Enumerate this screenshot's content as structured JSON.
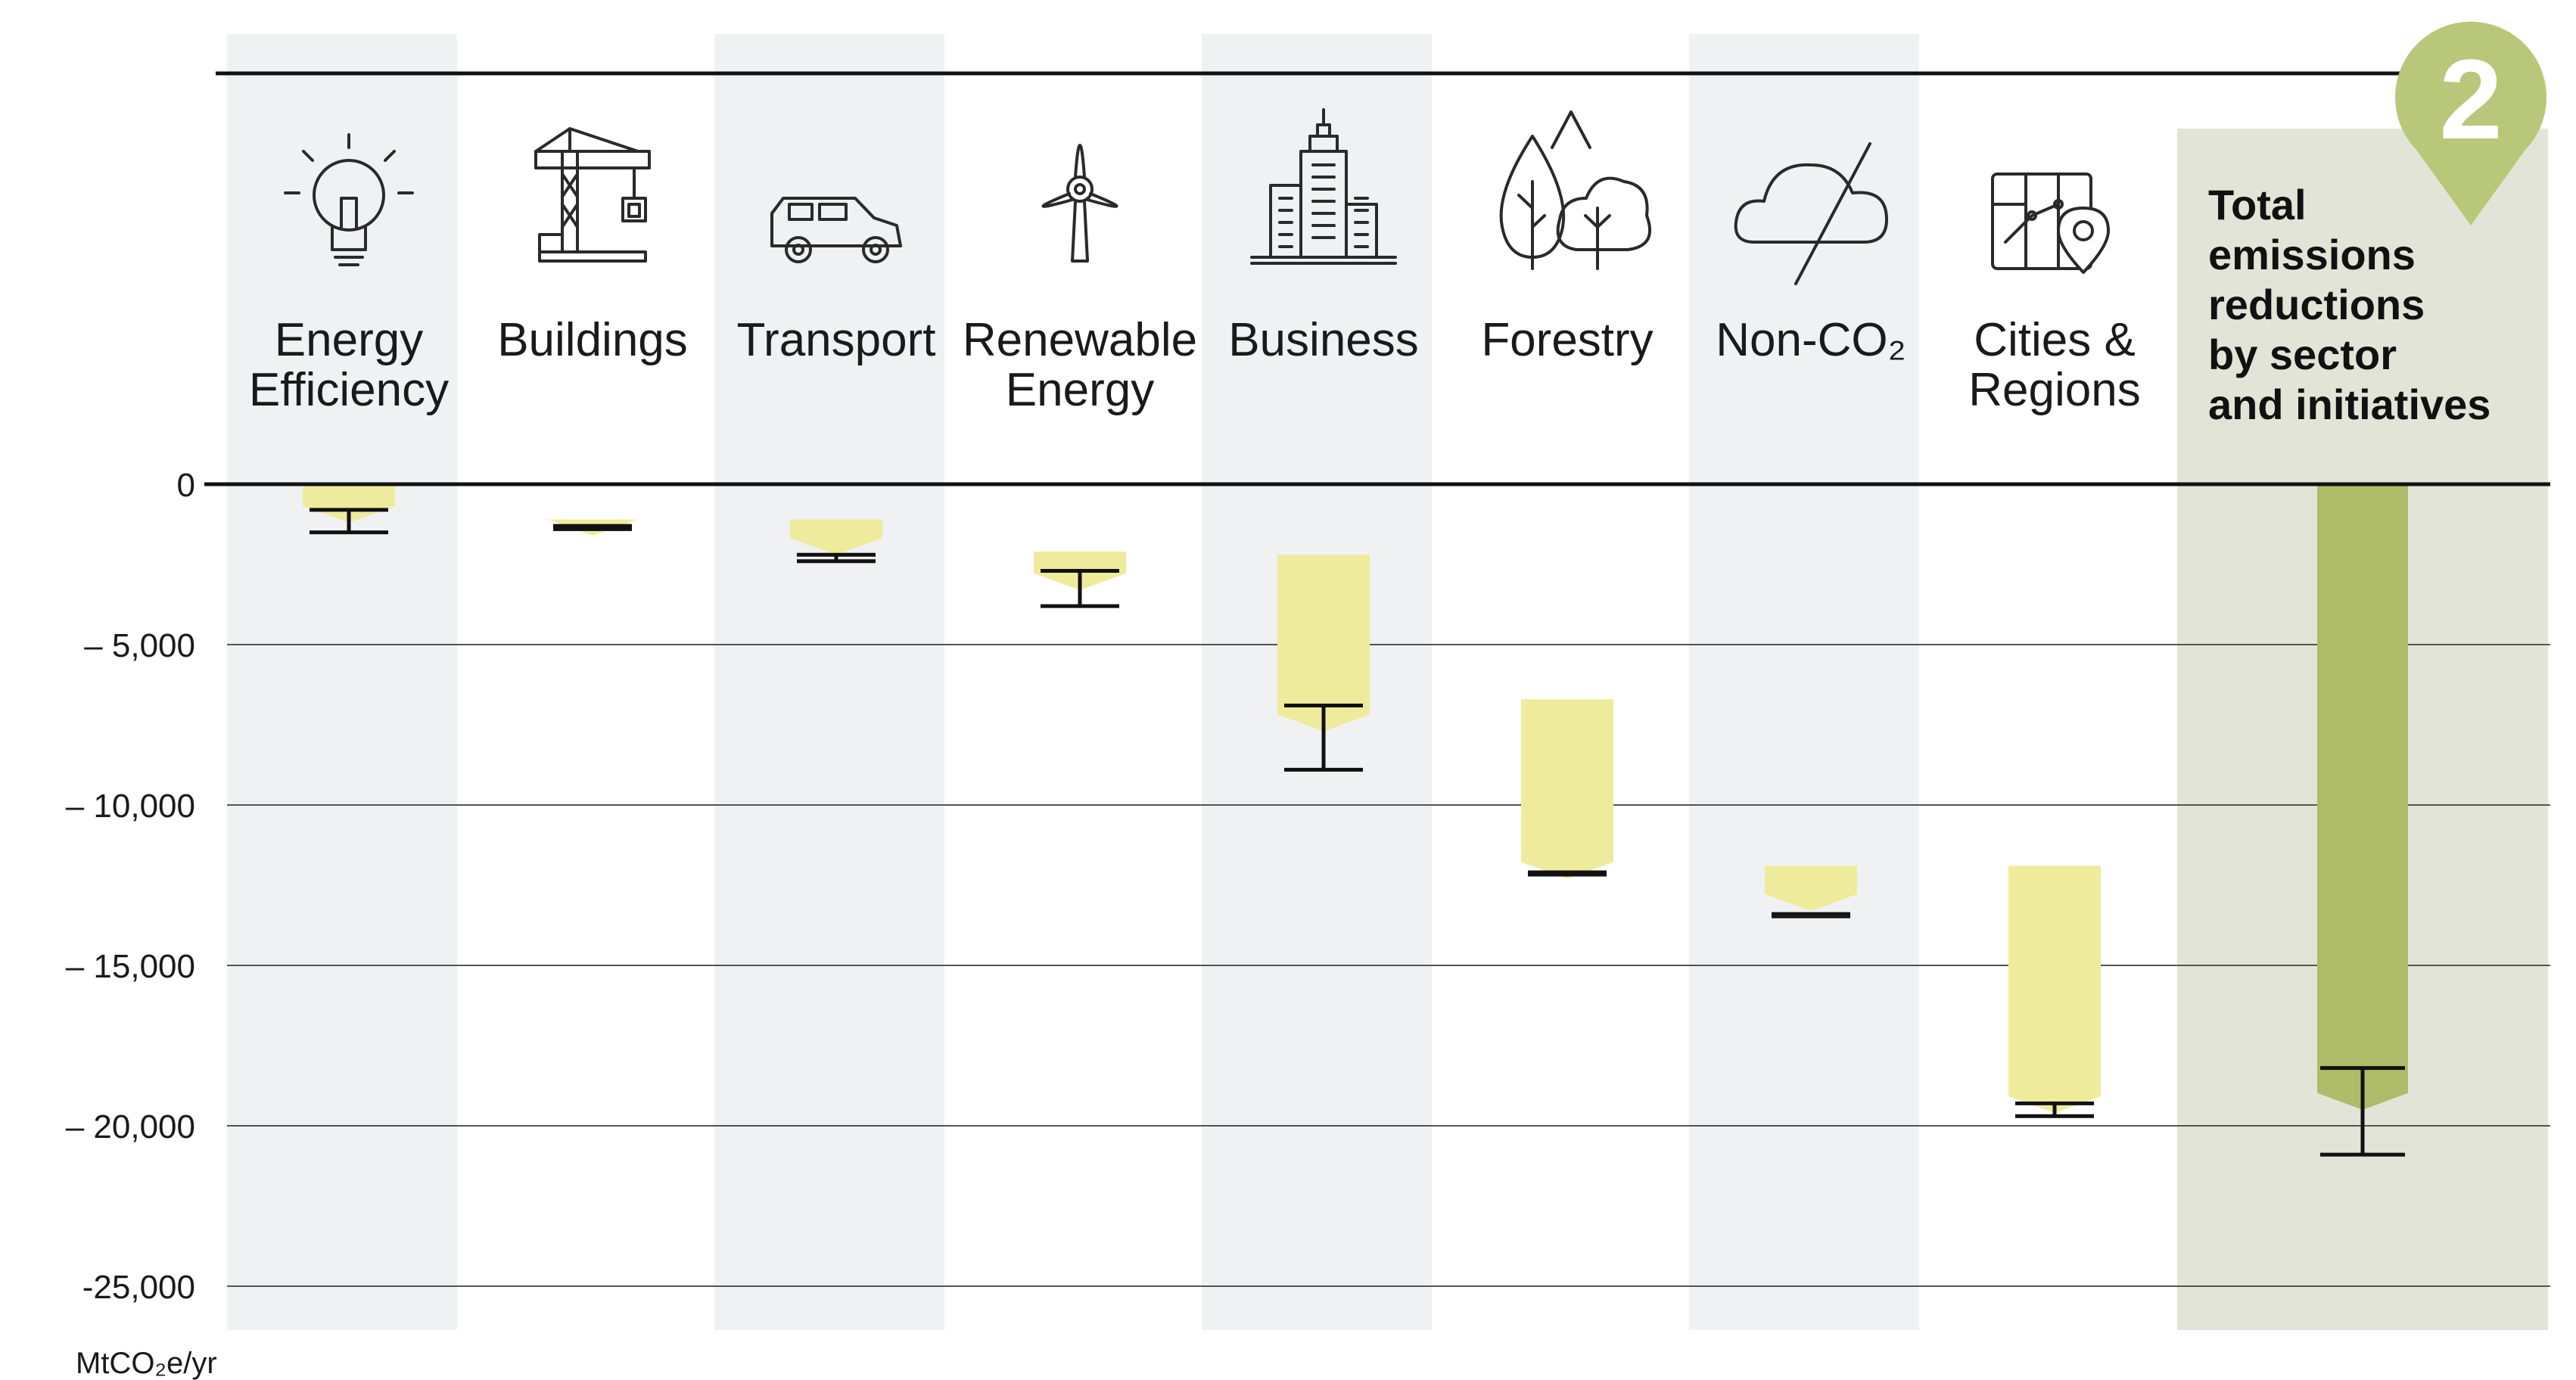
{
  "chart_data": {
    "type": "bar",
    "categories": [
      "Energy Efficiency",
      "Buildings",
      "Transport",
      "Renewable Energy",
      "Business",
      "Forestry",
      "Non-CO2",
      "Cities & Regions",
      "Total emissions reductions by sector and initiatives"
    ],
    "category_lines": [
      [
        "Energy",
        "Efficiency"
      ],
      [
        "Buildings"
      ],
      [
        "Transport"
      ],
      [
        "Renewable",
        "Energy"
      ],
      [
        "Business"
      ],
      [
        "Forestry"
      ],
      [
        "Non-CO₂"
      ],
      [
        "Cities &",
        "Regions"
      ],
      [
        "Total",
        "emissions",
        "reductions",
        "by sector",
        "and initiatives"
      ]
    ],
    "icons": [
      "lightbulb-icon",
      "crane-building-icon",
      "car-icon",
      "wind-turbine-icon",
      "office-tower-icon",
      "trees-icon",
      "cloud-strikethrough-icon",
      "city-map-pin-icon",
      null
    ],
    "series": [
      {
        "values": [
          {
            "low": -1200,
            "high": 0,
            "err_low": -1500,
            "err_high": -800
          },
          {
            "low": -1600,
            "high": -1100,
            "err_low": -1400,
            "err_high": -1300
          },
          {
            "low": -2200,
            "high": -1100,
            "err_low": -2400,
            "err_high": -2200
          },
          {
            "low": -3300,
            "high": -2100,
            "err_low": -3800,
            "err_high": -2700
          },
          {
            "low": -7700,
            "high": -2200,
            "err_low": -8900,
            "err_high": -6900
          },
          {
            "low": -12300,
            "high": -6700,
            "err_low": -12100,
            "err_high": -12100
          },
          {
            "low": -13300,
            "high": -11900,
            "err_low": -13400,
            "err_high": -13400
          },
          {
            "low": -19600,
            "high": -11900,
            "err_low": -19700,
            "err_high": -19300
          },
          {
            "low": -19500,
            "high": 0,
            "err_low": -20900,
            "err_high": -18200
          }
        ]
      }
    ],
    "ylim": [
      -26000,
      0
    ],
    "yticks": [
      0,
      -5000,
      -10000,
      -15000,
      -20000,
      -25000
    ],
    "ytick_labels": [
      "0",
      "– 5,000",
      "– 10,000",
      "– 15,000",
      "– 20,000",
      "-25,000"
    ],
    "ylabel": "MtCO₂e/yr",
    "badge": "2",
    "grid": true,
    "colors": {
      "bar": "#efeb9c",
      "total_bar": "#aebb68",
      "total_panel": "#e3e4d8",
      "stripe": "#f0f1f2",
      "badge": "#b9c77a",
      "grid": "#555555",
      "axis": "#111111"
    }
  }
}
